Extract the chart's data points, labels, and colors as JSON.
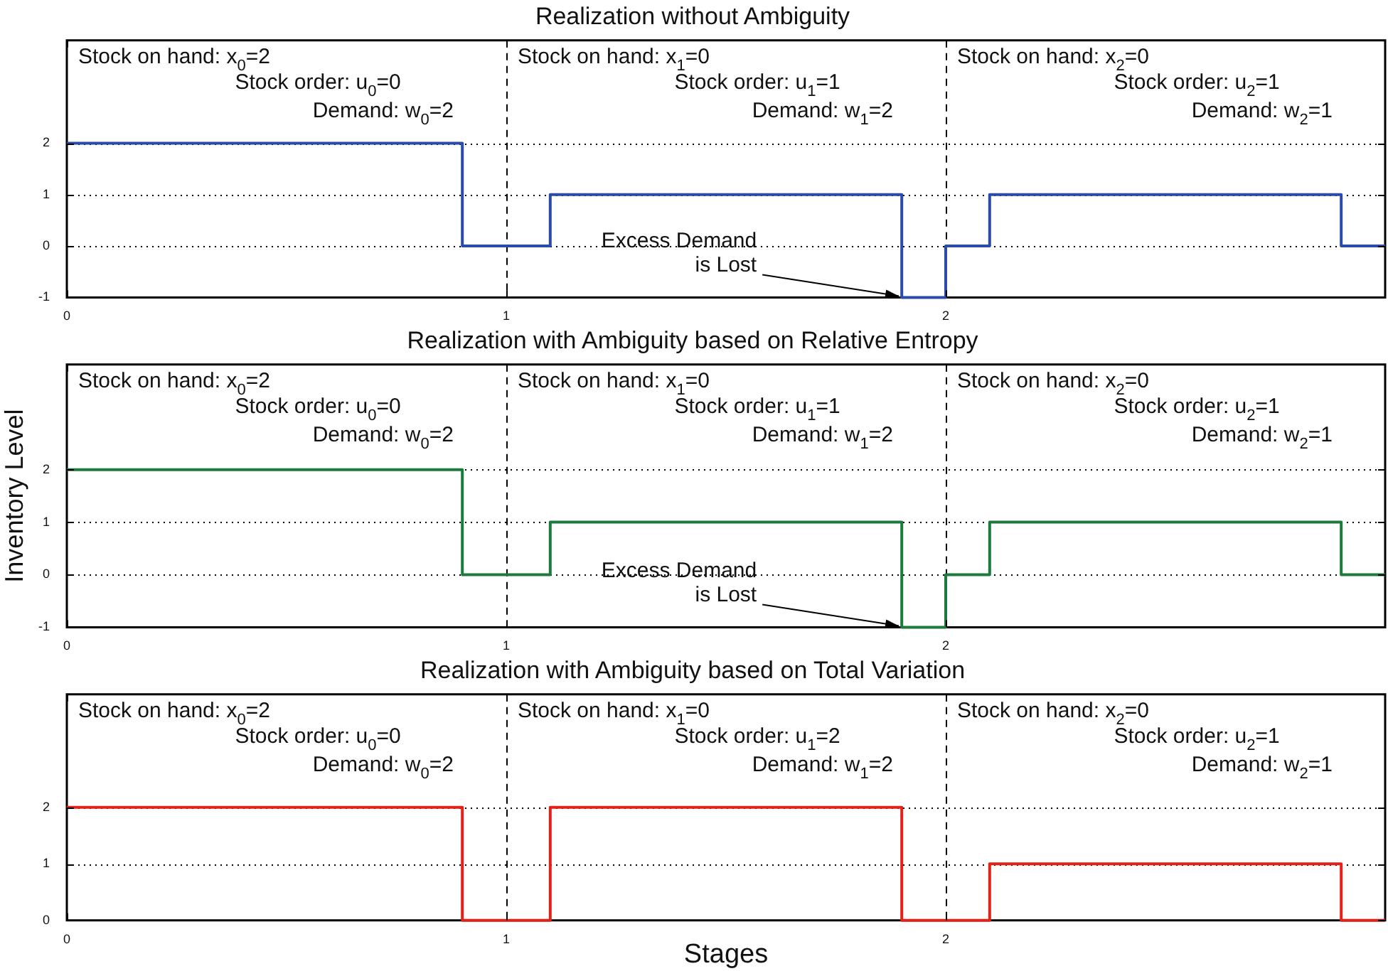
{
  "chart_data": [
    {
      "type": "step",
      "title": "Realization without Ambiguity",
      "x": [
        0,
        0.9,
        1.1,
        1.9,
        2,
        2.1,
        2.9,
        3
      ],
      "series": [
        {
          "color": "#2b4ba8",
          "values": [
            2,
            0,
            1,
            -1,
            0,
            1,
            0,
            0
          ]
        }
      ],
      "xlim": [
        0,
        3
      ],
      "ylim": [
        -1,
        4
      ],
      "xticks": [
        0,
        1,
        2
      ],
      "yticks": [
        -1,
        0,
        1,
        2
      ],
      "grid": "y",
      "ref_lines": [
        {
          "axis": "x",
          "value": 1,
          "line_style": "dashed"
        },
        {
          "axis": "x",
          "value": 2,
          "line_style": "dashed"
        }
      ],
      "annotations": [
        "Stock on hand: x$_{0}$=2",
        "Stock order: u$_{0}$=0",
        "Demand: w$_{0}$=2",
        "Stock on hand: x$_{1}$=0",
        "Stock order: u$_{1}$=1",
        "Demand: w$_{1}$=2",
        "Stock on hand: x$_{2}$=0",
        "Stock order: u$_{2}$=1",
        "Demand: w$_{2}$=1",
        {
          "text": "Excess Demand\nis Lost",
          "x": 1.9,
          "y": -1
        }
      ]
    },
    {
      "type": "step",
      "title": "Realization with Ambiguity based on Relative Entropy",
      "ylabel": "Inventory Level",
      "x": [
        0,
        0.9,
        1.1,
        1.9,
        2,
        2.1,
        2.9,
        3
      ],
      "series": [
        {
          "color": "#1b7a3c",
          "values": [
            2,
            0,
            1,
            -1,
            0,
            1,
            0,
            0
          ]
        }
      ],
      "xlim": [
        0,
        3
      ],
      "ylim": [
        -1,
        4
      ],
      "xticks": [
        0,
        1,
        2
      ],
      "yticks": [
        -1,
        0,
        1,
        2
      ],
      "grid": "y",
      "ref_lines": [
        {
          "axis": "x",
          "value": 1,
          "line_style": "dashed"
        },
        {
          "axis": "x",
          "value": 2,
          "line_style": "dashed"
        }
      ],
      "annotations": [
        "Stock on hand: x$_{0}$=2",
        "Stock order: u$_{0}$=0",
        "Demand: w$_{0}$=2",
        "Stock on hand: x$_{1}$=0",
        "Stock order: u$_{1}$=1",
        "Demand: w$_{1}$=2",
        "Stock on hand: x$_{2}$=0",
        "Stock order: u$_{2}$=1",
        "Demand: w$_{2}$=1",
        {
          "text": "Excess Demand\nis Lost",
          "x": 1.9,
          "y": -1
        }
      ]
    },
    {
      "type": "step",
      "title": "Realization with Ambiguity based on Total Variation",
      "xlabel": "Stages",
      "x": [
        0,
        0.9,
        1.1,
        1.9,
        2.1,
        2.9,
        3
      ],
      "series": [
        {
          "color": "#e32119",
          "values": [
            2,
            0,
            2,
            0,
            1,
            0,
            0
          ]
        }
      ],
      "xlim": [
        0,
        3
      ],
      "ylim": [
        0,
        4
      ],
      "xticks": [
        0,
        1,
        2
      ],
      "yticks": [
        0,
        1,
        2
      ],
      "grid": "y",
      "ref_lines": [
        {
          "axis": "x",
          "value": 1,
          "line_style": "dashed"
        },
        {
          "axis": "x",
          "value": 2,
          "line_style": "dashed"
        }
      ],
      "annotations": [
        "Stock on hand: x$_{0}$=2",
        "Stock order: u$_{0}$=0",
        "Demand: w$_{0}$=2",
        "Stock on hand: x$_{1}$=0",
        "Stock order: u$_{1}$=2",
        "Demand: w$_{1}$=2",
        "Stock on hand: x$_{2}$=0",
        "Stock order: u$_{2}$=1",
        "Demand: w$_{2}$=1"
      ]
    }
  ]
}
